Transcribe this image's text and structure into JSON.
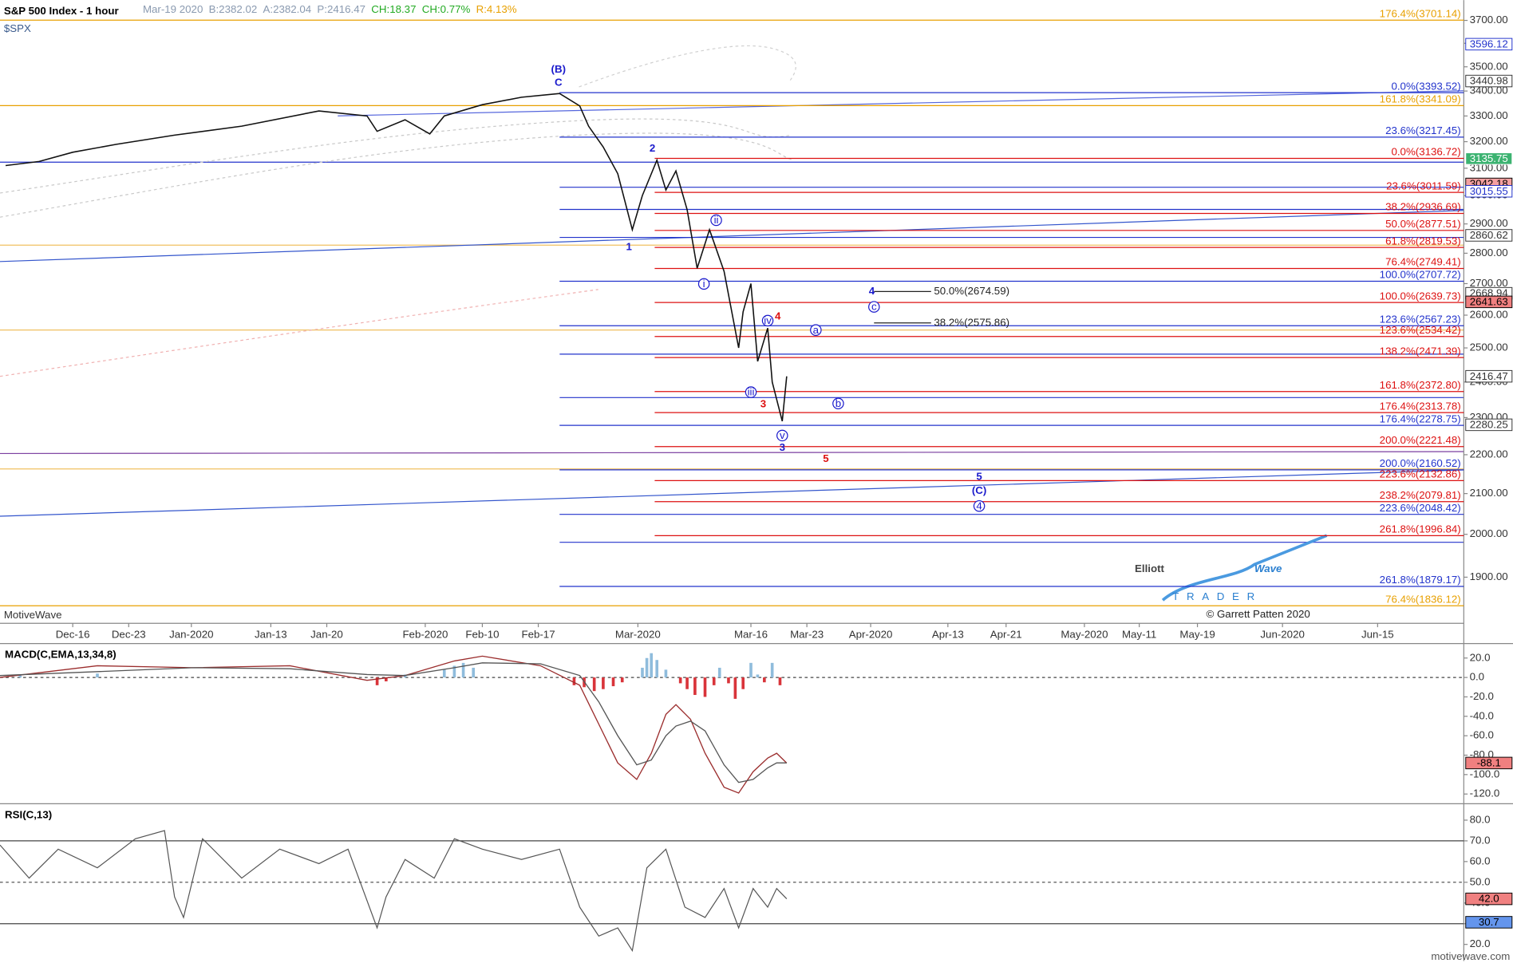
{
  "chart_data": [
    {
      "type": "line",
      "title": "S&P 500 Index - 1 hour",
      "subtitle": "$SPX",
      "quote": [
        {
          "text": "Mar-19 2020",
          "color": "#8a9ab0"
        },
        {
          "text": "B:2382.02",
          "color": "#8a9ab0"
        },
        {
          "text": "A:2382.04",
          "color": "#8a9ab0"
        },
        {
          "text": "P:2416.47",
          "color": "#8a9ab0"
        },
        {
          "text": "CH:18.37",
          "color": "#22aa22"
        },
        {
          "text": "CH:0.77%",
          "color": "#22aa22"
        },
        {
          "text": "R:4.13%",
          "color": "#e8a000"
        }
      ],
      "log_scale": true,
      "xlim": [
        -6.5,
        124.3
      ],
      "ylim": [
        1800,
        3791
      ],
      "xticks": [
        {
          "value": 0,
          "label": "Dec-16"
        },
        {
          "value": 5,
          "label": "Dec-23"
        },
        {
          "value": 10.6,
          "label": "Jan-2020"
        },
        {
          "value": 17.7,
          "label": "Jan-13"
        },
        {
          "value": 22.7,
          "label": "Jan-20"
        },
        {
          "value": 31.5,
          "label": "Feb-2020"
        },
        {
          "value": 36.6,
          "label": "Feb-10"
        },
        {
          "value": 41.6,
          "label": "Feb-17"
        },
        {
          "value": 50.5,
          "label": "Mar-2020"
        },
        {
          "value": 60.6,
          "label": "Mar-16"
        },
        {
          "value": 65.6,
          "label": "Mar-23"
        },
        {
          "value": 71.3,
          "label": "Apr-2020"
        },
        {
          "value": 78.2,
          "label": "Apr-13"
        },
        {
          "value": 83.4,
          "label": "Apr-21"
        },
        {
          "value": 90.4,
          "label": "May-2020"
        },
        {
          "value": 95.3,
          "label": "May-11"
        },
        {
          "value": 100.5,
          "label": "May-19"
        },
        {
          "value": 108.1,
          "label": "Jun-2020"
        },
        {
          "value": 116.6,
          "label": "Jun-15"
        }
      ],
      "yticks": [
        {
          "value": 1900,
          "label": "1900.00"
        },
        {
          "value": 2000,
          "label": "2000.00"
        },
        {
          "value": 2100,
          "label": "2100.00"
        },
        {
          "value": 2200,
          "label": "2200.00"
        },
        {
          "value": 2300,
          "label": "2300.00"
        },
        {
          "value": 2400,
          "label": "2400.00"
        },
        {
          "value": 2500,
          "label": "2500.00"
        },
        {
          "value": 2600,
          "label": "2600.00"
        },
        {
          "value": 2700,
          "label": "2700.00"
        },
        {
          "value": 2800,
          "label": "2800.00"
        },
        {
          "value": 2900,
          "label": "2900.00"
        },
        {
          "value": 3000,
          "label": "3000.00"
        },
        {
          "value": 3100,
          "label": "3100.00"
        },
        {
          "value": 3200,
          "label": "3200.00"
        },
        {
          "value": 3300,
          "label": "3300.00"
        },
        {
          "value": 3400,
          "label": "3400.00"
        },
        {
          "value": 3500,
          "label": "3500.00"
        },
        {
          "value": 3600,
          "label": "3600.00"
        },
        {
          "value": 3700,
          "label": "3700.00"
        }
      ],
      "x": [
        -6.0,
        -3.0,
        0,
        3.9,
        9.1,
        15.1,
        22.0,
        26.3,
        27.2,
        29.7,
        31.9,
        33.2,
        36.6,
        40.1,
        43.5,
        45.3,
        46.1,
        47.4,
        48.7,
        50.0,
        50.9,
        52.2,
        53.0,
        53.9,
        54.9,
        55.8,
        56.9,
        58.2,
        59.5,
        59.9,
        60.6,
        61.2,
        62.1,
        62.5,
        63.4,
        63.8
      ],
      "values": [
        3110,
        3125,
        3160,
        3190,
        3225,
        3260,
        3320,
        3300,
        3240,
        3285,
        3230,
        3300,
        3345,
        3375,
        3390,
        3340,
        3260,
        3180,
        3080,
        2880,
        3000,
        3130,
        3020,
        3090,
        2950,
        2750,
        2880,
        2740,
        2500,
        2610,
        2700,
        2460,
        2560,
        2400,
        2290,
        2416.47
      ],
      "color": "#111111",
      "levels": [
        {
          "label": "176.4%(3701.14)",
          "value": 3701.14,
          "color": "#e8a000",
          "from": -6.5
        },
        {
          "label": "161.8%(3341.09)",
          "value": 3341.09,
          "color": "#e8a000",
          "from": -6.5
        },
        {
          "label": "76.4%(1836.12)",
          "value": 1836.12,
          "color": "#e8a000",
          "from": -6.5
        },
        {
          "label": "0.0%(3393.52)",
          "value": 3393.52,
          "color": "#2233cc",
          "from": 43.5
        },
        {
          "label": "23.6%(3217.45)",
          "value": 3217.45,
          "color": "#2233cc",
          "from": 43.5
        },
        {
          "label": "100.0%(2707.72)",
          "value": 2707.72,
          "color": "#2233cc",
          "from": 43.5
        },
        {
          "label": "123.6%(2567.23)",
          "value": 2567.23,
          "color": "#2233cc",
          "from": 43.5
        },
        {
          "label": "176.4%(2278.75)",
          "value": 2278.75,
          "color": "#2233cc",
          "from": 43.5
        },
        {
          "label": "200.0%(2160.52)",
          "value": 2160.52,
          "color": "#2233cc",
          "from": 43.5
        },
        {
          "label": "223.6%(2048.42)",
          "value": 2048.42,
          "color": "#2233cc",
          "from": 43.5
        },
        {
          "label": "261.8%(1879.17)",
          "value": 1879.17,
          "color": "#2233cc",
          "from": 43.5
        },
        {
          "label": "0.0%(3136.72)",
          "value": 3136.72,
          "color": "#dd1111",
          "from": 52
        },
        {
          "label": "23.6%(3011.59)",
          "value": 3011.59,
          "color": "#dd1111",
          "from": 52
        },
        {
          "label": "38.2%(2936.69)",
          "value": 2936.69,
          "color": "#dd1111",
          "from": 52
        },
        {
          "label": "50.0%(2877.51)",
          "value": 2877.51,
          "color": "#dd1111",
          "from": 52
        },
        {
          "label": "61.8%(2819.53)",
          "value": 2819.53,
          "color": "#dd1111",
          "from": 52
        },
        {
          "label": "76.4%(2749.41)",
          "value": 2749.41,
          "color": "#dd1111",
          "from": 52
        },
        {
          "label": "100.0%(2639.73)",
          "value": 2639.73,
          "color": "#dd1111",
          "from": 52
        },
        {
          "label": "123.6%(2534.42)",
          "value": 2534.42,
          "color": "#dd1111",
          "from": 52
        },
        {
          "label": "138.2%(2471.39)",
          "value": 2471.39,
          "color": "#dd1111",
          "from": 52
        },
        {
          "label": "161.8%(2372.80)",
          "value": 2372.8,
          "color": "#dd1111",
          "from": 52
        },
        {
          "label": "176.4%(2313.78)",
          "value": 2313.78,
          "color": "#dd1111",
          "from": 52
        },
        {
          "label": "200.0%(2221.48)",
          "value": 2221.48,
          "color": "#dd1111",
          "from": 52
        },
        {
          "label": "223.6%(2132.86)",
          "value": 2132.86,
          "color": "#dd1111",
          "from": 52
        },
        {
          "label": "238.2%(2079.81)",
          "value": 2079.81,
          "color": "#dd1111",
          "from": 52
        },
        {
          "label": "261.8%(1996.84)",
          "value": 1996.84,
          "color": "#dd1111",
          "from": 52
        },
        {
          "label": "50.0%(2674.59)",
          "value": 2674.59,
          "color": "#222222",
          "from": 71.6,
          "to": 76.7
        },
        {
          "label": "38.2%(2575.86)",
          "value": 2575.86,
          "color": "#222222",
          "from": 71.6,
          "to": 76.7
        }
      ],
      "waves": [
        {
          "text": "(B)",
          "x": 43.4,
          "y": 3488,
          "color": "#1a1acc",
          "circled": false
        },
        {
          "text": "C",
          "x": 43.4,
          "y": 3433,
          "color": "#1a1acc",
          "circled": false
        },
        {
          "text": "2",
          "x": 51.8,
          "y": 3173,
          "color": "#1a1acc",
          "circled": false
        },
        {
          "text": "1",
          "x": 49.7,
          "y": 2820,
          "color": "#1a1acc",
          "circled": false
        },
        {
          "text": "4",
          "x": 71.4,
          "y": 2674,
          "color": "#1a1acc",
          "circled": false
        },
        {
          "text": "5",
          "x": 81.0,
          "y": 2142,
          "color": "#1a1acc",
          "circled": false
        },
        {
          "text": "(C)",
          "x": 81.0,
          "y": 2106,
          "color": "#1a1acc",
          "circled": false
        },
        {
          "text": "4",
          "x": 81.0,
          "y": 2069,
          "color": "#1a1acc",
          "circled": true
        },
        {
          "text": "4",
          "x": 63.0,
          "y": 2595,
          "color": "#dd1111",
          "circled": false
        },
        {
          "text": "3",
          "x": 61.7,
          "y": 2336,
          "color": "#dd1111",
          "circled": false
        },
        {
          "text": "5",
          "x": 67.3,
          "y": 2188,
          "color": "#dd1111",
          "circled": false
        },
        {
          "text": "3",
          "x": 63.4,
          "y": 2218,
          "color": "#1a1acc",
          "circled": false
        },
        {
          "text": "i",
          "x": 56.4,
          "y": 2699,
          "color": "#1a1acc",
          "circled": true
        },
        {
          "text": "ii",
          "x": 57.5,
          "y": 2913,
          "color": "#1a1acc",
          "circled": true
        },
        {
          "text": "iii",
          "x": 60.6,
          "y": 2371,
          "color": "#1a1acc",
          "circled": true
        },
        {
          "text": "iv",
          "x": 62.1,
          "y": 2583,
          "color": "#1a1acc",
          "circled": true
        },
        {
          "text": "v",
          "x": 63.4,
          "y": 2251,
          "color": "#1a1acc",
          "circled": true
        },
        {
          "text": "a",
          "x": 66.4,
          "y": 2554,
          "color": "#1a1acc",
          "circled": true
        },
        {
          "text": "b",
          "x": 68.4,
          "y": 2339,
          "color": "#1a1acc",
          "circled": true
        },
        {
          "text": "c",
          "x": 71.6,
          "y": 2626,
          "color": "#1a1acc",
          "circled": true
        }
      ],
      "price_boxes": [
        {
          "value": 3596.12,
          "fill": "#ffffff",
          "text_color": "#2233cc"
        },
        {
          "value": 3440.98,
          "fill": "#ffffff",
          "text_color": "#333333"
        },
        {
          "value": 3135.75,
          "fill": "#3cb371",
          "text_color": "#ffffff"
        },
        {
          "value": 3042.18,
          "fill": "#f4a0a0",
          "text_color": "#000000"
        },
        {
          "value": 3015.55,
          "fill": "#ffffff",
          "text_color": "#2233cc"
        },
        {
          "value": 2860.62,
          "fill": "#ffffff",
          "text_color": "#333333"
        },
        {
          "value": 2668.94,
          "fill": "#ffffff",
          "text_color": "#333333"
        },
        {
          "value": 2641.63,
          "fill": "#f08080",
          "text_color": "#000000"
        },
        {
          "value": 2416.47,
          "fill": "#ffffff",
          "text_color": "#333333"
        },
        {
          "value": 2280.25,
          "fill": "#ffffff",
          "text_color": "#333333"
        }
      ],
      "footer": "MotiveWave",
      "copyright": "© Garrett Patten 2020",
      "logo": [
        "Elliott",
        "Wave",
        "TRADER"
      ],
      "source": "motivewave.com"
    },
    {
      "type": "line",
      "title": "MACD(C,EMA,13,34,8)",
      "xlim": [
        -6.5,
        124.3
      ],
      "ylim": [
        -129,
        31.9
      ],
      "yticks": [
        {
          "value": 20,
          "label": "20.0"
        },
        {
          "value": 0,
          "label": "0.0"
        },
        {
          "value": -20,
          "label": "-20.0"
        },
        {
          "value": -40,
          "label": "-40.0"
        },
        {
          "value": -60,
          "label": "-60.0"
        },
        {
          "value": -80,
          "label": "-80.0"
        },
        {
          "value": -100,
          "label": "-100.0"
        },
        {
          "value": -120,
          "label": "-120.0"
        }
      ],
      "x": [
        -6.5,
        2.2,
        10.8,
        19.4,
        26.3,
        29.7,
        34.1,
        36.6,
        41.8,
        45.3,
        47.0,
        48.7,
        50.4,
        51.7,
        53.0,
        53.9,
        55.2,
        56.5,
        58.2,
        59.5,
        60.8,
        62.1,
        62.9,
        63.8
      ],
      "series": [
        {
          "color": "#9b2d2d",
          "values": [
            0,
            12,
            10,
            12,
            -3,
            2,
            17,
            22,
            12,
            -8,
            -48,
            -88,
            -105,
            -78,
            -38,
            -28,
            -43,
            -78,
            -113,
            -119,
            -97,
            -83,
            -78,
            -88.1
          ]
        },
        {
          "color": "#555555",
          "values": [
            2,
            6,
            10,
            9,
            3,
            2,
            10,
            15,
            14,
            2,
            -25,
            -60,
            -90,
            -85,
            -60,
            -50,
            -45,
            -55,
            -90,
            -108,
            -105,
            -93,
            -88,
            -88
          ]
        }
      ],
      "histogram": {
        "x": [
          -4.7,
          2.2,
          27.2,
          28.0,
          28.9,
          29.7,
          33.2,
          34.1,
          34.9,
          35.8,
          44.8,
          45.7,
          46.6,
          47.4,
          48.3,
          49.1,
          50.9,
          51.3,
          51.7,
          52.2,
          53.0,
          54.3,
          54.9,
          55.6,
          56.5,
          57.3,
          57.8,
          58.6,
          59.2,
          59.9,
          60.6,
          61.2,
          61.8,
          62.5,
          63.2
        ],
        "values": [
          3,
          4,
          -8,
          -4,
          2,
          3,
          8,
          12,
          15,
          10,
          -8,
          -10,
          -14,
          -12,
          -9,
          -5,
          10,
          20,
          25,
          18,
          8,
          -6,
          -12,
          -18,
          -20,
          -8,
          10,
          -6,
          -22,
          -12,
          15,
          3,
          -5,
          15,
          -8
        ],
        "up_color": "#8fbcdc",
        "down_color": "#d9343a"
      },
      "levels": [
        {
          "value": 0,
          "color": "#444444",
          "dashed": true
        }
      ],
      "price_boxes": [
        {
          "value": -88.1,
          "fill": "#f08080",
          "text_color": "#000000"
        }
      ]
    },
    {
      "type": "line",
      "title": "RSI(C,13)",
      "xlim": [
        -6.5,
        124.3
      ],
      "ylim": [
        12,
        87
      ],
      "yticks": [
        {
          "value": 80,
          "label": "80.0"
        },
        {
          "value": 70,
          "label": "70.0"
        },
        {
          "value": 60,
          "label": "60.0"
        },
        {
          "value": 50,
          "label": "50.0"
        },
        {
          "value": 40,
          "label": "40.0"
        },
        {
          "value": 30,
          "label": "30.0"
        },
        {
          "value": 20,
          "label": "20.0"
        }
      ],
      "x": [
        -6.5,
        -3.9,
        -1.3,
        2.2,
        5.6,
        8.2,
        9.1,
        9.9,
        11.6,
        15.1,
        18.5,
        22.0,
        24.6,
        27.2,
        28.0,
        29.7,
        32.3,
        34.1,
        36.6,
        40.1,
        43.5,
        45.3,
        47.0,
        48.7,
        50.0,
        51.3,
        53.0,
        54.7,
        56.5,
        58.2,
        59.5,
        60.8,
        62.1,
        62.9,
        63.8
      ],
      "values": [
        68,
        52,
        66,
        57,
        71,
        75,
        43,
        33,
        71,
        52,
        66,
        59,
        66,
        28,
        43,
        61,
        52,
        71,
        66,
        61,
        66,
        38,
        24,
        28,
        17,
        57,
        66,
        38,
        33,
        47,
        28,
        47,
        38,
        47,
        42
      ],
      "color": "#555555",
      "levels": [
        {
          "value": 70,
          "color": "#444444"
        },
        {
          "value": 50,
          "color": "#444444",
          "dashed": true
        },
        {
          "value": 30,
          "color": "#444444"
        }
      ],
      "price_boxes": [
        {
          "value": 42,
          "label": "42.0",
          "fill": "#f08080",
          "text_color": "#000000"
        },
        {
          "value": 30.7,
          "fill": "#6495ed",
          "text_color": "#000000"
        }
      ]
    }
  ]
}
